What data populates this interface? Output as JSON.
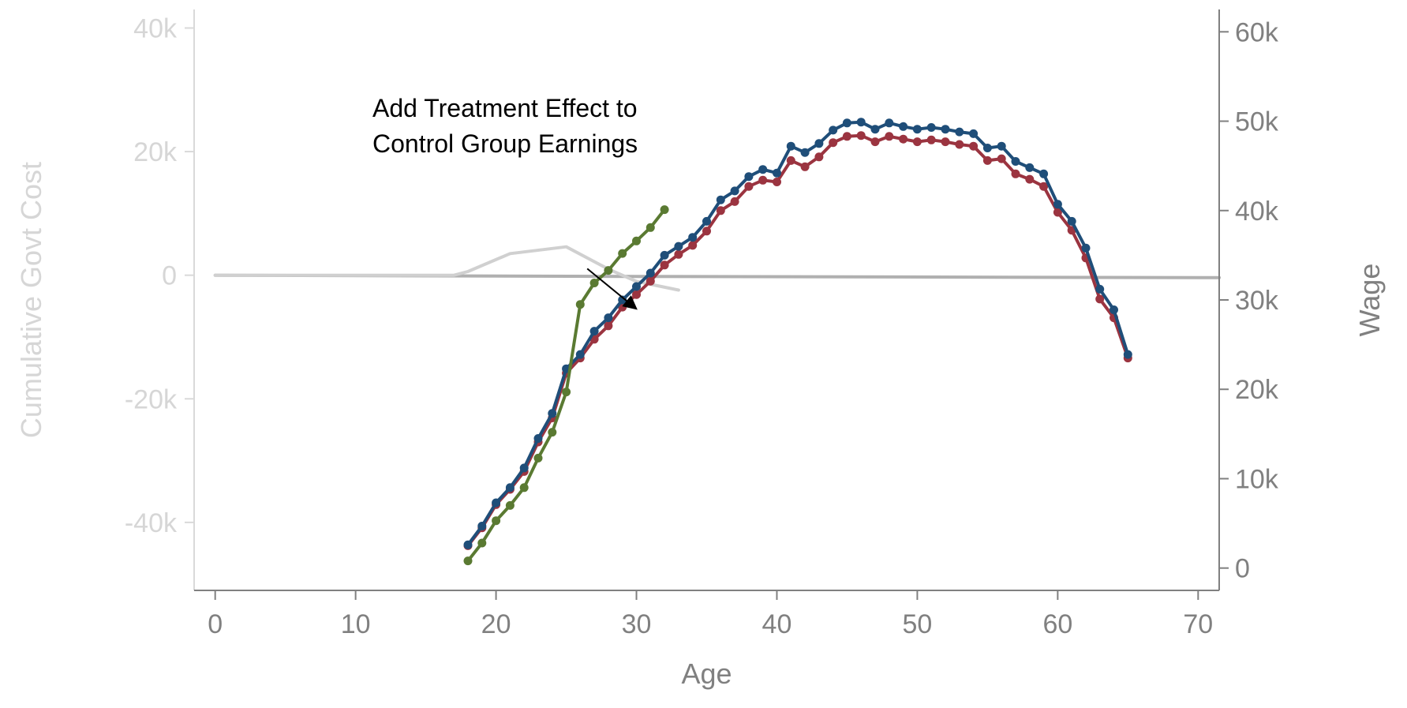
{
  "chart_data": {
    "type": "line",
    "xlabel": "Age",
    "ylabel_left": "Cumulative Govt Cost",
    "ylabel_right": "Wage",
    "xlim": [
      -1.5,
      71.5
    ],
    "ylim_left": [
      -51000,
      43000
    ],
    "ylim_right": [
      -2500,
      62500
    ],
    "x_ticks": [
      0,
      10,
      20,
      30,
      40,
      50,
      60,
      70
    ],
    "x_tick_labels": [
      "0",
      "10",
      "20",
      "30",
      "40",
      "50",
      "60",
      "70"
    ],
    "y_left_ticks": [
      40000,
      20000,
      0,
      -20000,
      -40000
    ],
    "y_left_tick_labels": [
      "40k",
      "20k",
      "0",
      "-20k",
      "-40k"
    ],
    "y_right_ticks": [
      60000,
      50000,
      40000,
      30000,
      20000,
      10000,
      0
    ],
    "y_right_tick_labels": [
      "60k",
      "50k",
      "40k",
      "30k",
      "20k",
      "10k",
      "0"
    ],
    "grid": false,
    "colors": {
      "treated": "#1f4e79",
      "control": "#9b3440",
      "adjusted": "#5a7a32",
      "cost_faded": "#d0d0d0",
      "cost_zero": "#b0b0b0"
    },
    "annotation": {
      "lines": [
        "Add Treatment Effect to",
        "Control Group Earnings"
      ],
      "arrow_from": [
        26.5,
        33500
      ],
      "arrow_to": [
        30,
        29000
      ]
    },
    "series": [
      {
        "axis": "right",
        "color_key": "treated",
        "markers": true,
        "x": [
          18,
          19,
          20,
          21,
          22,
          23,
          24,
          25,
          26,
          27,
          28,
          29,
          30,
          31,
          32,
          33,
          34,
          35,
          36,
          37,
          38,
          39,
          40,
          41,
          42,
          43,
          44,
          45,
          46,
          47,
          48,
          49,
          50,
          51,
          52,
          53,
          54,
          55,
          56,
          57,
          58,
          59,
          60,
          61,
          62,
          63,
          64,
          65
        ],
        "y": [
          2600,
          4700,
          7300,
          9000,
          11200,
          14500,
          17300,
          22300,
          23900,
          26500,
          28000,
          30000,
          31500,
          33000,
          35000,
          36000,
          37000,
          38800,
          41200,
          42200,
          43800,
          44600,
          44200,
          47200,
          46500,
          47500,
          49000,
          49800,
          49900,
          49100,
          49800,
          49400,
          49100,
          49300,
          49100,
          48800,
          48600,
          47000,
          47200,
          45500,
          44800,
          44100,
          40700,
          38800,
          35800,
          31200,
          28900,
          23900
        ]
      },
      {
        "axis": "right",
        "color_key": "control",
        "markers": true,
        "x": [
          18,
          19,
          20,
          21,
          22,
          23,
          24,
          25,
          26,
          27,
          28,
          29,
          30,
          31,
          32,
          33,
          34,
          35,
          36,
          37,
          38,
          39,
          40,
          41,
          42,
          43,
          44,
          45,
          46,
          47,
          48,
          49,
          50,
          51,
          52,
          53,
          54,
          55,
          56,
          57,
          58,
          59,
          60,
          61,
          62,
          63,
          64,
          65
        ],
        "y": [
          2500,
          4500,
          7100,
          8800,
          10800,
          14100,
          16800,
          21800,
          23500,
          25600,
          27100,
          29200,
          30600,
          32100,
          33900,
          35100,
          36100,
          37700,
          40000,
          41000,
          42700,
          43400,
          43200,
          45600,
          44900,
          46000,
          47600,
          48300,
          48400,
          47700,
          48300,
          48000,
          47700,
          47900,
          47700,
          47400,
          47200,
          45600,
          45800,
          44100,
          43500,
          42700,
          39800,
          37800,
          34700,
          30100,
          28000,
          23500
        ]
      },
      {
        "axis": "right",
        "color_key": "adjusted",
        "markers": true,
        "x": [
          18,
          19,
          20,
          21,
          22,
          23,
          24,
          25,
          26,
          27,
          28,
          29,
          30,
          31,
          32
        ],
        "y": [
          800,
          2800,
          5300,
          7000,
          9000,
          12300,
          15200,
          19700,
          29500,
          31900,
          33300,
          35200,
          36600,
          38100,
          40100
        ]
      },
      {
        "axis": "left",
        "color_key": "cost_faded",
        "markers": false,
        "x": [
          0,
          17,
          18,
          21,
          25,
          28,
          30,
          33
        ],
        "y": [
          0,
          0,
          600,
          3500,
          4600,
          1000,
          -1000,
          -2400
        ]
      },
      {
        "axis": "left",
        "color_key": "cost_zero",
        "markers": false,
        "x": [
          0,
          30,
          71.5
        ],
        "y": [
          0,
          -200,
          -400
        ]
      }
    ]
  }
}
